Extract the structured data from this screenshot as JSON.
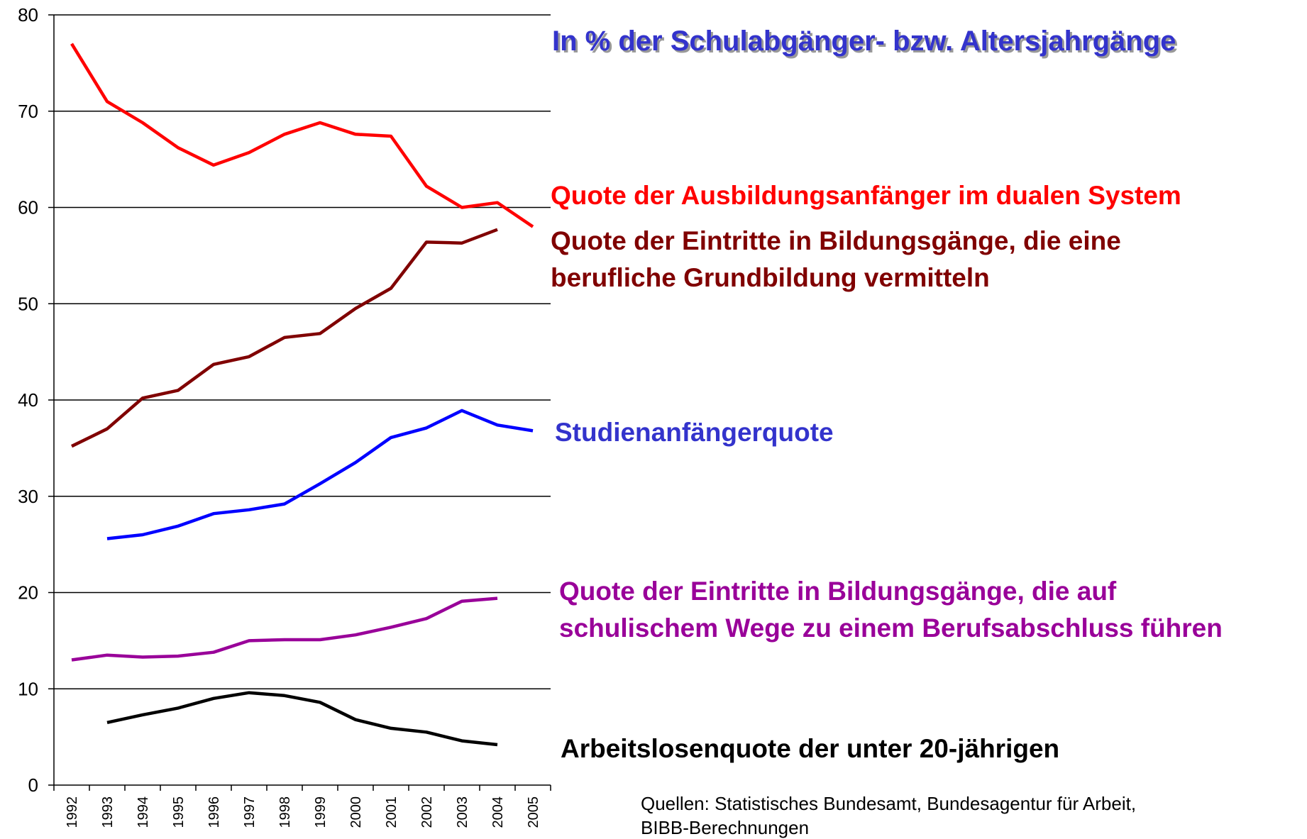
{
  "chart_data": {
    "type": "line",
    "title": "In % der Schulabgänger- bzw. Altersjahrgänge",
    "categories": [
      "1992",
      "1993",
      "1994",
      "1995",
      "1996",
      "1997",
      "1998",
      "1999",
      "2000",
      "2001",
      "2002",
      "2003",
      "2004",
      "2005"
    ],
    "series": [
      {
        "name": "Quote der Ausbildungsanfänger im dualen System",
        "color": "#ff0000",
        "values": [
          77,
          71,
          68.8,
          66.2,
          64.4,
          65.7,
          67.6,
          68.8,
          67.6,
          67.4,
          62.2,
          60.0,
          60.5,
          58.0
        ]
      },
      {
        "name": "Quote der Eintritte in Bildungsgänge, die eine berufliche Grundbildung vermitteln",
        "color": "#800000",
        "values": [
          35.2,
          37.0,
          40.2,
          41.0,
          43.7,
          44.5,
          46.5,
          46.9,
          49.5,
          51.6,
          56.4,
          56.3,
          57.7,
          null
        ]
      },
      {
        "name": "Studienanfängerquote",
        "color": "#0000ff",
        "values": [
          null,
          25.6,
          26.0,
          26.9,
          28.2,
          28.6,
          29.2,
          31.3,
          33.5,
          36.1,
          37.1,
          38.9,
          37.4,
          36.8
        ]
      },
      {
        "name": "Quote der Eintritte in Bildungsgänge, die auf schulischem Wege zu einem Berufsabschluss führen",
        "color": "#990099",
        "values": [
          13.0,
          13.5,
          13.3,
          13.4,
          13.8,
          15.0,
          15.1,
          15.1,
          15.6,
          16.4,
          17.3,
          19.1,
          19.4,
          null
        ]
      },
      {
        "name": "Arbeitslosenquote der unter 20-jährigen",
        "color": "#000000",
        "values": [
          null,
          6.5,
          7.3,
          8.0,
          9.0,
          9.6,
          9.3,
          8.6,
          6.8,
          5.9,
          5.5,
          4.6,
          4.2,
          null
        ]
      }
    ],
    "ylim": [
      0,
      80
    ],
    "yticks": [
      0,
      10,
      20,
      30,
      40,
      50,
      60,
      70,
      80
    ],
    "grid": true,
    "source": [
      "Quellen: Statistisches Bundesamt, Bundesagentur für Arbeit,",
      "BIBB-Berechnungen"
    ]
  }
}
